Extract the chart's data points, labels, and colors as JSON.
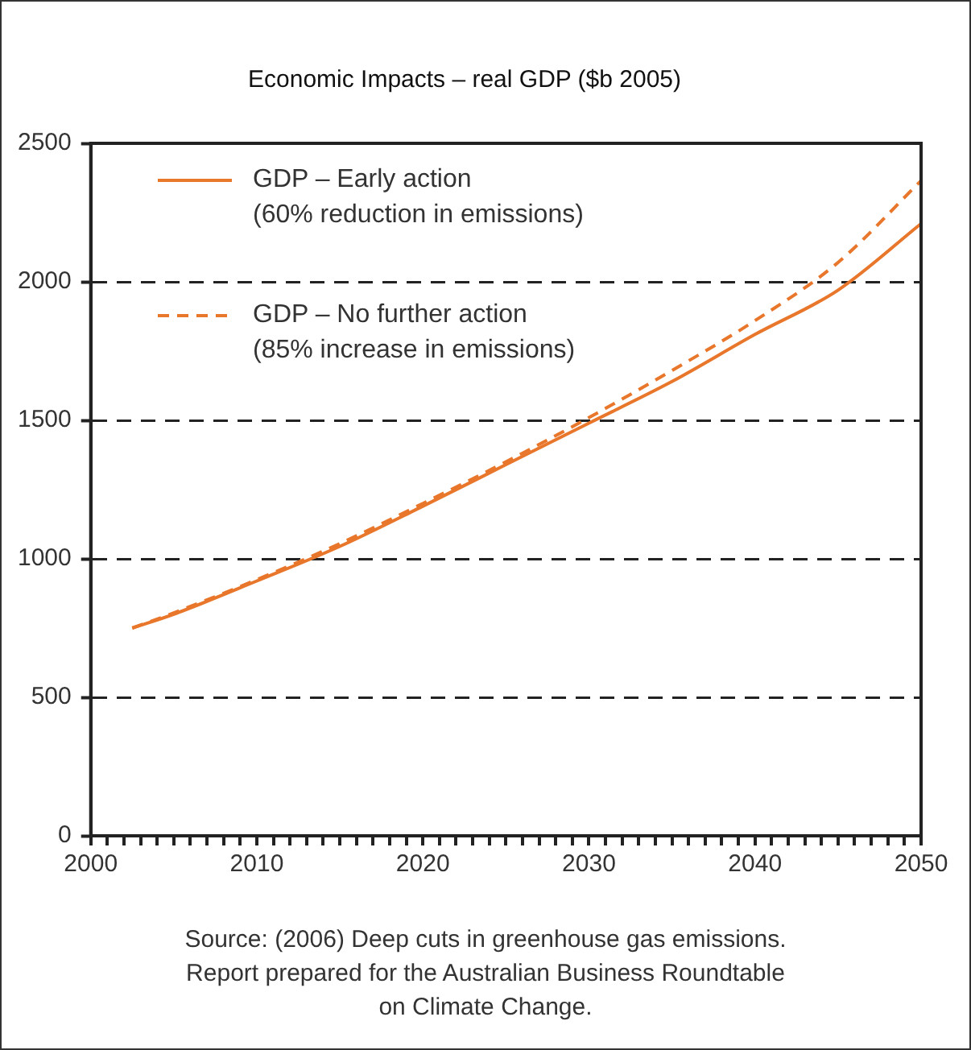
{
  "chart_data": {
    "type": "line",
    "title": "Economic Impacts – real GDP ($b 2005)",
    "x": [
      2002.5,
      2005,
      2010,
      2015,
      2020,
      2025,
      2030,
      2035,
      2040,
      2045,
      2050
    ],
    "series": [
      {
        "name": "GDP – Early action\n(60% reduction in emissions)",
        "color": "#e8762b",
        "line_style": "solid",
        "values": [
          750,
          800,
          920,
          1045,
          1190,
          1340,
          1490,
          1640,
          1810,
          1970,
          2210
        ]
      },
      {
        "name": "GDP – No further action\n(85% increase in emissions)",
        "color": "#e8762b",
        "line_style": "dashed",
        "values": [
          750,
          805,
          925,
          1055,
          1200,
          1350,
          1510,
          1680,
          1860,
          2070,
          2365
        ]
      }
    ],
    "xlim": [
      2000,
      2050
    ],
    "xticks": [
      2000,
      {
        "value": 2001,
        "label": null
      },
      {
        "value": 2002,
        "label": null
      },
      {
        "value": 2003,
        "label": null
      },
      {
        "value": 2004,
        "label": null
      },
      {
        "value": 2005,
        "label": null
      },
      {
        "value": 2006,
        "label": null
      },
      {
        "value": 2007,
        "label": null
      },
      {
        "value": 2008,
        "label": null
      },
      {
        "value": 2009,
        "label": null
      },
      2010,
      {
        "value": 2011,
        "label": null
      },
      {
        "value": 2012,
        "label": null
      },
      {
        "value": 2013,
        "label": null
      },
      {
        "value": 2014,
        "label": null
      },
      {
        "value": 2015,
        "label": null
      },
      {
        "value": 2016,
        "label": null
      },
      {
        "value": 2017,
        "label": null
      },
      {
        "value": 2018,
        "label": null
      },
      {
        "value": 2019,
        "label": null
      },
      2020,
      {
        "value": 2021,
        "label": null
      },
      {
        "value": 2022,
        "label": null
      },
      {
        "value": 2023,
        "label": null
      },
      {
        "value": 2024,
        "label": null
      },
      {
        "value": 2025,
        "label": null
      },
      {
        "value": 2026,
        "label": null
      },
      {
        "value": 2027,
        "label": null
      },
      {
        "value": 2028,
        "label": null
      },
      {
        "value": 2029,
        "label": null
      },
      2030,
      {
        "value": 2031,
        "label": null
      },
      {
        "value": 2032,
        "label": null
      },
      {
        "value": 2033,
        "label": null
      },
      {
        "value": 2034,
        "label": null
      },
      {
        "value": 2035,
        "label": null
      },
      {
        "value": 2036,
        "label": null
      },
      {
        "value": 2037,
        "label": null
      },
      {
        "value": 2038,
        "label": null
      },
      {
        "value": 2039,
        "label": null
      },
      2040,
      {
        "value": 2041,
        "label": null
      },
      {
        "value": 2042,
        "label": null
      },
      {
        "value": 2043,
        "label": null
      },
      {
        "value": 2044,
        "label": null
      },
      {
        "value": 2045,
        "label": null
      },
      {
        "value": 2046,
        "label": null
      },
      {
        "value": 2047,
        "label": null
      },
      {
        "value": 2048,
        "label": null
      },
      {
        "value": 2049,
        "label": null
      },
      2050
    ],
    "ylim": [
      0,
      2500
    ],
    "yticks": [
      0,
      500,
      1000,
      1500,
      2000,
      2500
    ],
    "grid": "y",
    "legend": "top left",
    "marker": "none",
    "annotations": [
      "Source: (2006) Deep cuts in greenhouse gas emissions. Report prepared for the Australian Business Roundtable on Climate Change."
    ]
  }
}
